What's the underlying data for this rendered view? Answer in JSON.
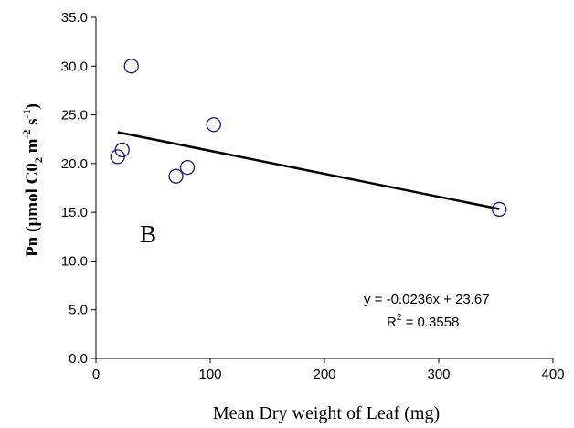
{
  "chart_data": {
    "type": "scatter",
    "xlabel": "Mean Dry weight of Leaf (mg)",
    "ylabel": {
      "prefix": "Pn (",
      "mu": "µ",
      "mid": "mol C0",
      "sub2": "2",
      "m": " m",
      "sup_m": "-2",
      "s": " s",
      "sup_s": "-1",
      "close": ")"
    },
    "panel_label": "B",
    "xlim": [
      0,
      400
    ],
    "ylim": [
      0,
      35
    ],
    "x_ticks": [
      0,
      100,
      200,
      300,
      400
    ],
    "x_tick_labels": [
      "0",
      "100",
      "200",
      "300",
      "400"
    ],
    "y_ticks": [
      0,
      5,
      10,
      15,
      20,
      25,
      30,
      35
    ],
    "y_tick_labels": [
      "0.0",
      "5.0",
      "10.0",
      "15.0",
      "20.0",
      "25.0",
      "30.0",
      "35.0"
    ],
    "points": [
      {
        "x": 31,
        "y": 30.0
      },
      {
        "x": 103,
        "y": 24.0
      },
      {
        "x": 23,
        "y": 21.4
      },
      {
        "x": 19,
        "y": 20.7
      },
      {
        "x": 80,
        "y": 19.6
      },
      {
        "x": 70,
        "y": 18.7
      },
      {
        "x": 353,
        "y": 15.3
      }
    ],
    "trendline": {
      "slope": -0.0236,
      "intercept": 23.67,
      "x_start": 19,
      "x_end": 353,
      "equation": "y = -0.0236x + 23.67",
      "r2_prefix": "R",
      "r2_sup": "2",
      "r2_value": " = 0.3558"
    },
    "grid": false,
    "colors": {
      "axis": "#000000",
      "marker_stroke": "#1a1a7a",
      "trendline": "#000000"
    }
  }
}
